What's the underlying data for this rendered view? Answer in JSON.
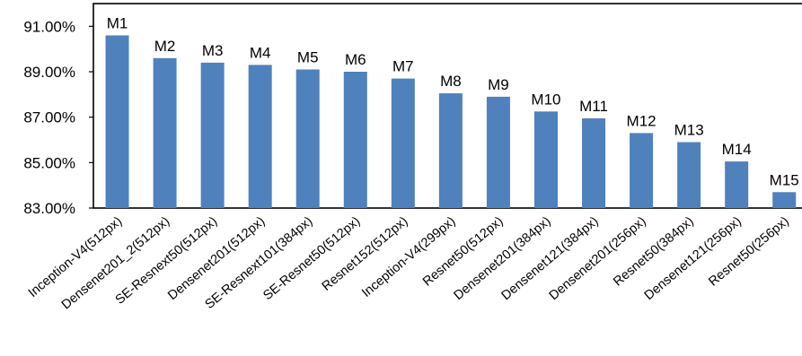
{
  "chart_data": {
    "type": "bar",
    "categories": [
      "Inception-V4(512px)",
      "Densenet201_2(512px)",
      "SE-Resnext50(512px)",
      "Densenet201(512px)",
      "SE-Resnext101(384px)",
      "SE-Resnet50(512px)",
      "Resnet152(512px)",
      "Inception-V4(299px)",
      "Resnet50(512px)",
      "Densenet201(384px)",
      "Densenet121(384px)",
      "Densenet201(256px)",
      "Resnet50(384px)",
      "Densenet121(256px)",
      "Resnet50(256px)"
    ],
    "values": [
      90.6,
      89.6,
      89.4,
      89.3,
      89.1,
      89.0,
      88.7,
      88.05,
      87.9,
      87.25,
      86.95,
      86.3,
      85.9,
      85.05,
      83.7
    ],
    "data_labels": [
      "M1",
      "M2",
      "M3",
      "M4",
      "M5",
      "M6",
      "M7",
      "M8",
      "M9",
      "M10",
      "M11",
      "M12",
      "M13",
      "M14",
      "M15"
    ],
    "yticks": [
      83,
      85,
      87,
      89,
      91
    ],
    "ytick_labels": [
      "83.00%",
      "85.00%",
      "87.00%",
      "89.00%",
      "91.00%"
    ],
    "ylim": [
      83,
      92
    ],
    "title": "",
    "xlabel": "",
    "ylabel": "",
    "grid": false,
    "legend": "none",
    "bar_color": "#4f81bd"
  }
}
